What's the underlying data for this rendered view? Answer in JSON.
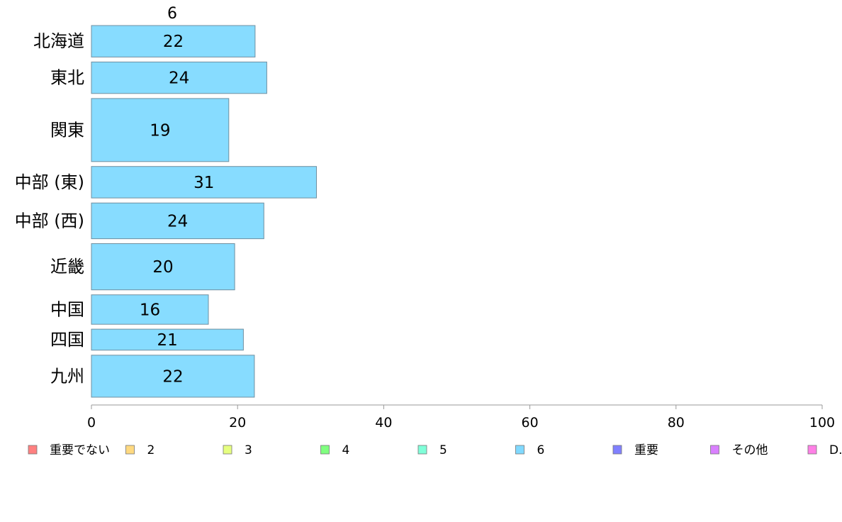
{
  "chart_data": {
    "type": "bar",
    "orientation": "horizontal",
    "series_label": "6",
    "categories": [
      "北海道",
      "東北",
      "関東",
      "中部 (東)",
      "中部 (西)",
      "近畿",
      "中国",
      "四国",
      "九州"
    ],
    "series": [
      {
        "name": "6",
        "color": "#87DCFF",
        "values": [
          22.4,
          24,
          18.8,
          30.8,
          23.6,
          19.6,
          16,
          20.8,
          22.3
        ],
        "value_labels": [
          "22",
          "24",
          "19",
          "31",
          "24",
          "20",
          "16",
          "21",
          "22"
        ]
      }
    ],
    "bar_weights": [
      3,
      3,
      6,
      3,
      3.4,
      4.4,
      2.8,
      2,
      4
    ],
    "xlim": [
      0,
      100
    ],
    "xticks": [
      0,
      20,
      40,
      60,
      80,
      100
    ],
    "xtick_labels": [
      "0",
      "20",
      "40",
      "60",
      "80",
      "100"
    ],
    "grid": false,
    "legend": {
      "placement": "bottom",
      "items": [
        {
          "label": "重要でない",
          "color": "#FF8080"
        },
        {
          "label": "2",
          "color": "#FFD980"
        },
        {
          "label": "3",
          "color": "#E6FF80"
        },
        {
          "label": "4",
          "color": "#80FF80"
        },
        {
          "label": "5",
          "color": "#80FFD9"
        },
        {
          "label": "6",
          "color": "#80D9FF"
        },
        {
          "label": "重要",
          "color": "#8080FF"
        },
        {
          "label": "その他",
          "color": "#D980FF"
        },
        {
          "label": "D.K.",
          "color": "#FF80E6"
        }
      ]
    }
  }
}
